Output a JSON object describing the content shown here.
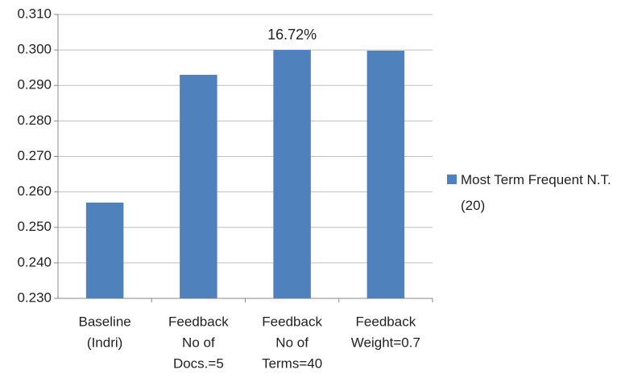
{
  "chart_data": {
    "type": "bar",
    "categories": [
      [
        "Baseline",
        "(Indri)"
      ],
      [
        "Feedback",
        "No of",
        "Docs.=5"
      ],
      [
        "Feedback",
        "No of",
        "Terms=40"
      ],
      [
        "Feedback",
        "Weight=0.7"
      ]
    ],
    "series": [
      {
        "name": "Most Term Frequent N.T.(20)",
        "color": "#4f81bd",
        "values": [
          0.257,
          0.293,
          0.3,
          0.2998
        ]
      }
    ],
    "annotations": [
      {
        "text": "16.72%",
        "category": 2
      }
    ],
    "ylim": [
      0.23,
      0.31
    ],
    "yticks": [
      {
        "value": 0.23,
        "label": "0.230"
      },
      {
        "value": 0.24,
        "label": "0.240"
      },
      {
        "value": 0.25,
        "label": "0.250"
      },
      {
        "value": 0.26,
        "label": "0.260"
      },
      {
        "value": 0.27,
        "label": "0.270"
      },
      {
        "value": 0.28,
        "label": "0.280"
      },
      {
        "value": 0.29,
        "label": "0.290"
      },
      {
        "value": 0.3,
        "label": "0.300"
      },
      {
        "value": 0.31,
        "label": "0.310"
      }
    ],
    "grid": true,
    "legend": "right"
  }
}
